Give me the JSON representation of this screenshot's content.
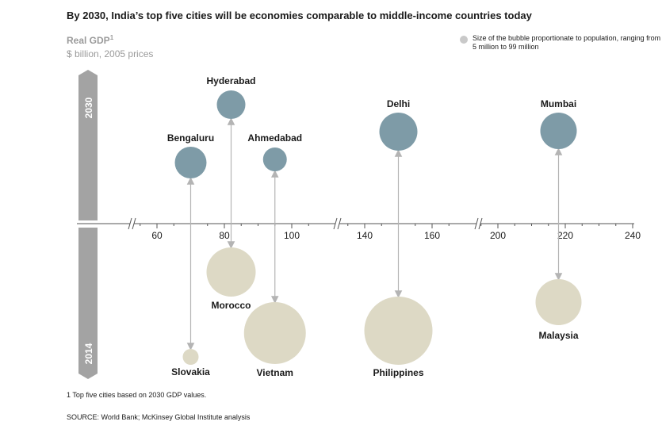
{
  "header": {
    "title": "By 2030, India’s top five cities will be economies comparable to middle-income countries today",
    "ylabel": "Real GDP",
    "ylabel_note": "1",
    "yunit": "$ billion, 2005 prices"
  },
  "legend": {
    "text": "Size of the bubble proportionate to population, ranging from 5 million to 99 million"
  },
  "footer": {
    "footnote": "1 Top five cities based on 2030 GDP values.",
    "source": "SOURCE:  World Bank; McKinsey Global Institute analysis"
  },
  "chart_data": {
    "type": "scatter",
    "x_ticks": [
      60,
      80,
      100,
      140,
      160,
      200,
      220,
      240
    ],
    "year_top": "2030",
    "year_bottom": "2014",
    "colors": {
      "city": "#7e9ba7",
      "country": "#ddd9c5",
      "arrow": "#b4b4b4",
      "axis": "#555555",
      "year_bar": "#a3a3a3"
    },
    "pairs": [
      {
        "city": "Bengaluru",
        "city_gdp": 70,
        "country": "Slovakia",
        "country_gdp": 70
      },
      {
        "city": "Hyderabad",
        "city_gdp": 82,
        "country": "Morocco",
        "country_gdp": 82
      },
      {
        "city": "Ahmedabad",
        "city_gdp": 95,
        "country": "Vietnam",
        "country_gdp": 95
      },
      {
        "city": "Delhi",
        "city_gdp": 150,
        "country": "Philippines",
        "country_gdp": 150
      },
      {
        "city": "Mumbai",
        "city_gdp": 218,
        "country": "Malaysia",
        "country_gdp": 218
      }
    ]
  }
}
